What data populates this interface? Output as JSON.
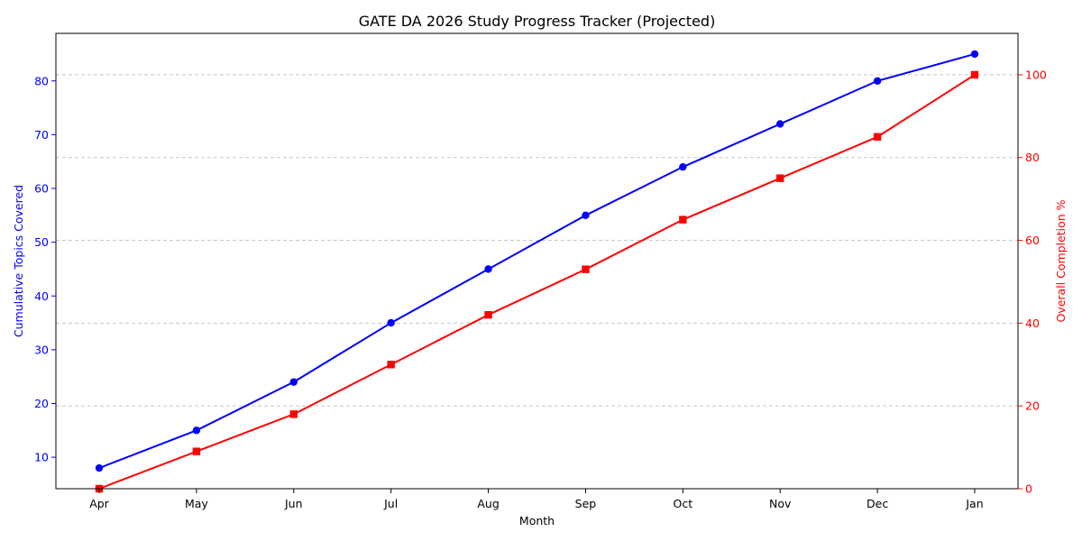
{
  "chart_data": {
    "type": "line",
    "title": "GATE DA 2026 Study Progress Tracker (Projected)",
    "xlabel": "Month",
    "ylabel_left": "Cumulative Topics Covered",
    "ylabel_right": "Overall Completion %",
    "categories": [
      "Apr",
      "May",
      "Jun",
      "Jul",
      "Aug",
      "Sep",
      "Oct",
      "Nov",
      "Dec",
      "Jan"
    ],
    "series": [
      {
        "axis": "left",
        "color": "#0000ff",
        "marker": "circle",
        "values": [
          8,
          15,
          24,
          35,
          45,
          55,
          64,
          72,
          80,
          85
        ]
      },
      {
        "axis": "right",
        "color": "#ff0000",
        "marker": "square",
        "values": [
          0,
          9,
          18,
          30,
          42,
          53,
          65,
          75,
          85,
          100
        ]
      }
    ],
    "ylim_left": [
      4.15,
      88.85
    ],
    "ylim_right": [
      0,
      110
    ],
    "yticks_left": [
      10,
      20,
      30,
      40,
      50,
      60,
      70,
      80
    ],
    "yticks_right": [
      0,
      20,
      40,
      60,
      80,
      100
    ],
    "grid": "horizontal, dashed, right axis",
    "grid_color": "#c8c8c8"
  }
}
